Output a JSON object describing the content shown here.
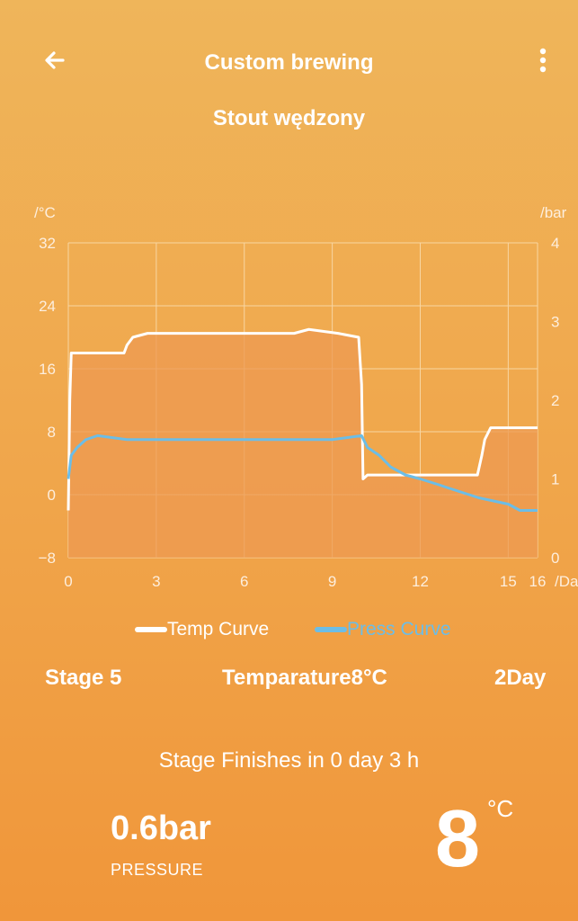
{
  "header": {
    "title": "Custom brewing",
    "back_icon": "arrow-left-icon",
    "more_icon": "more-vertical-icon"
  },
  "recipe_name": "Stout wędzony",
  "chart_data": {
    "type": "line",
    "x_label": "/Day",
    "x_ticks": [
      "0",
      "3",
      "6",
      "9",
      "12",
      "15",
      "16"
    ],
    "xlim": [
      0,
      16
    ],
    "y_left_label": "/°C",
    "y_left_ticks": [
      "32",
      "24",
      "16",
      "8",
      "0",
      "−8"
    ],
    "ylim_left": [
      -8,
      32
    ],
    "y_right_label": "/bar",
    "y_right_ticks": [
      "4",
      "3",
      "2",
      "1",
      "0"
    ],
    "ylim_right": [
      0,
      4
    ],
    "grid": true,
    "legend_position": "bottom",
    "colors": {
      "temp": "#ffffff",
      "press": "#6cbde6",
      "grid": "#f8d6a2",
      "fill": "#ee9a52"
    },
    "series": [
      {
        "name": "Temp Curve",
        "axis": "left",
        "x": [
          0,
          0.05,
          0.1,
          1.9,
          2,
          2.2,
          2.7,
          3,
          4,
          5,
          6,
          7,
          7.7,
          8.2,
          9.2,
          9.9,
          10,
          10.05,
          10.2,
          11,
          12,
          13,
          13.95,
          14.1,
          14.2,
          14.4,
          16
        ],
        "y": [
          -2,
          12,
          18,
          18,
          19,
          20,
          20.5,
          20.5,
          20.5,
          20.5,
          20.5,
          20.5,
          20.5,
          21,
          20.5,
          20,
          14,
          2,
          2.5,
          2.5,
          2.5,
          2.5,
          2.5,
          5,
          7,
          8.5,
          8.5
        ]
      },
      {
        "name": "Press Curve",
        "axis": "right",
        "x": [
          0,
          0.1,
          0.3,
          0.6,
          1,
          2,
          3,
          4,
          5,
          6,
          7,
          8,
          9,
          10,
          10.2,
          10.6,
          11,
          11.5,
          12,
          12.6,
          13,
          13.5,
          14,
          14.5,
          15,
          15.4,
          16
        ],
        "y": [
          1.0,
          1.3,
          1.4,
          1.5,
          1.55,
          1.5,
          1.5,
          1.5,
          1.5,
          1.5,
          1.5,
          1.5,
          1.5,
          1.55,
          1.4,
          1.3,
          1.15,
          1.05,
          1.0,
          0.93,
          0.88,
          0.82,
          0.76,
          0.72,
          0.68,
          0.6,
          0.6
        ]
      }
    ]
  },
  "legend": {
    "temp_label": "Temp Curve",
    "press_label": "Press Curve"
  },
  "stage": {
    "stage_label": "Stage 5",
    "temperature_text": "Temparature8°C",
    "duration_text": "2Day"
  },
  "status": {
    "finish_text": "Stage Finishes in 0 day 3 h",
    "pressure_value": "0.6bar",
    "pressure_label": "PRESSURE",
    "temperature_value": "8",
    "temperature_unit": "°C"
  }
}
